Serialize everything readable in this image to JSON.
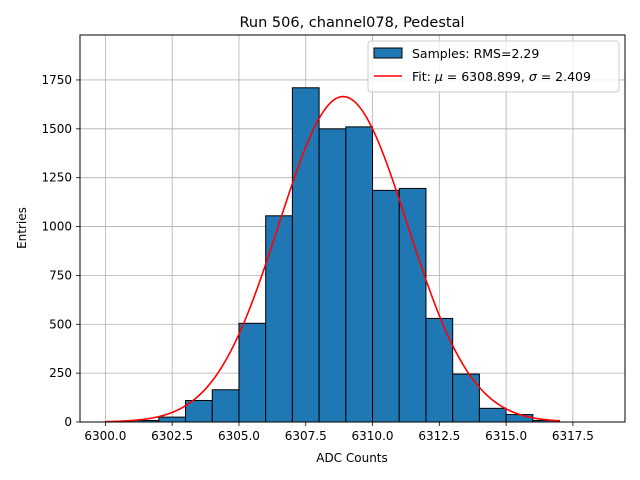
{
  "chart_data": {
    "type": "bar",
    "title": "Run 506, channel078, Pedestal",
    "xlabel": "ADC Counts",
    "ylabel": "Entries",
    "xlim": [
      6299.05,
      6319.45
    ],
    "ylim": [
      0,
      1980
    ],
    "xticks": [
      6300.0,
      6302.5,
      6305.0,
      6307.5,
      6310.0,
      6312.5,
      6315.0,
      6317.5
    ],
    "xtick_labels": [
      "6300.0",
      "6302.5",
      "6305.0",
      "6307.5",
      "6310.0",
      "6312.5",
      "6315.0",
      "6317.5"
    ],
    "yticks": [
      0,
      250,
      500,
      750,
      1000,
      1250,
      1500,
      1750
    ],
    "ytick_labels": [
      "0",
      "250",
      "500",
      "750",
      "1000",
      "1250",
      "1500",
      "1750"
    ],
    "grid": true,
    "legend_position": "top-right",
    "bin_edges": [
      6300,
      6301,
      6302,
      6303,
      6304,
      6305,
      6306,
      6307,
      6308,
      6309,
      6310,
      6311,
      6312,
      6313,
      6314,
      6315,
      6316,
      6317,
      6318,
      6319
    ],
    "bin_counts": [
      0,
      8,
      25,
      110,
      165,
      505,
      1055,
      1710,
      1500,
      1510,
      1185,
      1195,
      530,
      245,
      70,
      38,
      8,
      0,
      0
    ],
    "series": [
      {
        "name": "Samples: RMS=2.29",
        "kind": "histogram",
        "color": "#1f77b4",
        "edgecolor": "#000000"
      },
      {
        "name": "Fit: μ = 6308.899, σ = 2.409",
        "kind": "gaussian",
        "color": "#ff0000",
        "mu": 6308.899,
        "sigma": 2.409,
        "amplitude": 1665,
        "x_range": [
          6300,
          6317
        ]
      }
    ],
    "legend": {
      "samples_prefix": "Samples: RMS=2.29",
      "fit_prefix": "Fit: ",
      "mu_symbol": "μ",
      "mu_value": " = 6308.899, ",
      "sigma_symbol": "σ",
      "sigma_value": " = 2.409"
    }
  }
}
